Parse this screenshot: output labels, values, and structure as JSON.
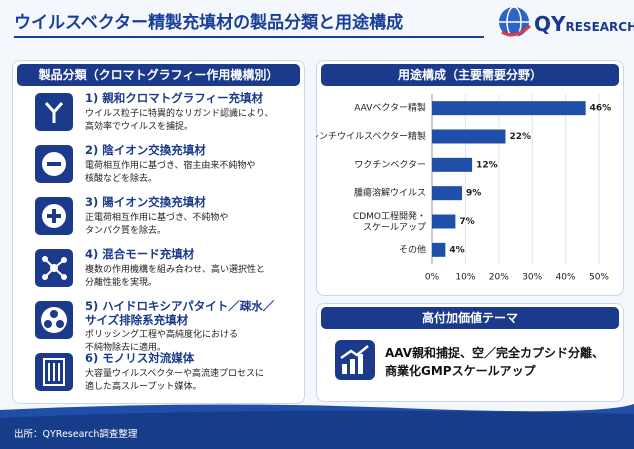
{
  "header": {
    "title": "ウイルスベクター精製充填材の製品分類と用途構成",
    "logo_main": "QY",
    "logo_sub": "RESEARCH"
  },
  "product_panel": {
    "title": "製品分類（クロマトグラフィー作用機構別）",
    "items": [
      {
        "title": "1) 親和クロマトグラフィー充填材",
        "text": "ウイルス粒子に特異的なリガンド認識により、\n高効率でウイルスを捕捉。"
      },
      {
        "title": "2) 陰イオン交換充填材",
        "text": "電荷相互作用に基づき、宿主由来不純物や\n核酸などを除去。"
      },
      {
        "title": "3) 陽イオン交換充填材",
        "text": "正電荷相互作用に基づき、不純物や\nタンパク質を除去。"
      },
      {
        "title": "4) 混合モード充填材",
        "text": "複数の作用機構を組み合わせ、高い選択性と\n分離性能を実現。"
      },
      {
        "title": "5) ハイドロキシアパタイト／疎水／\nサイズ排除系充填材",
        "text": "ポリッシング工程や高純度化における\n不純物除去に適用。"
      },
      {
        "title": "6) モノリス対流媒体",
        "text": "大容量ウイルスベクターや高流速プロセスに\n適した高スループット媒体。"
      }
    ]
  },
  "chart_data": {
    "type": "hbar",
    "title": "用途構成（主要需要分野）",
    "categories": [
      "AAVベクター精製",
      "レンチウイルスベクター精製",
      "ワクチンベクター",
      "腫瘍溶解ウイルス",
      "CDMO工程開発・\nスケールアップ",
      "その他"
    ],
    "values": [
      46,
      22,
      12,
      9,
      7,
      4
    ],
    "value_labels": [
      "46%",
      "22%",
      "12%",
      "9%",
      "7%",
      "4%"
    ],
    "color": "#1f4fa8",
    "xlim": [
      0,
      50
    ],
    "xticks": [
      {
        "value": 0,
        "label": "0%"
      },
      {
        "value": 10,
        "label": "10%"
      },
      {
        "value": 20,
        "label": "20%"
      },
      {
        "value": 30,
        "label": "30%"
      },
      {
        "value": 40,
        "label": "40%"
      },
      {
        "value": 50,
        "label": "50%"
      }
    ],
    "grid": true
  },
  "value_panel": {
    "title": "高付加価値テーマ",
    "text": "AAV親和捕捉、空／完全カプシド分離、\n商業化GMPスケールアップ"
  },
  "footer": {
    "source": "出所：QYResearch調査整理"
  }
}
